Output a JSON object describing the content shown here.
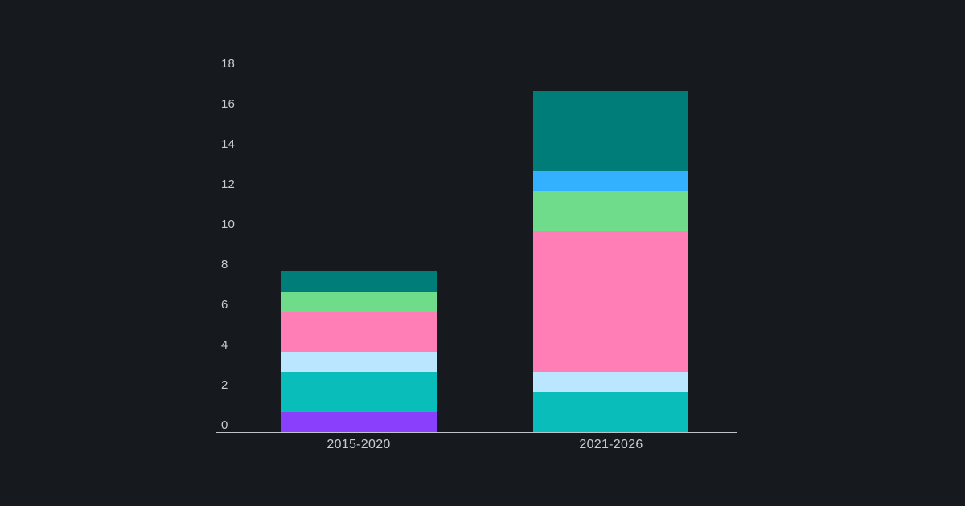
{
  "page": {
    "background": "#16191d"
  },
  "chart_data": {
    "type": "bar",
    "stacked": true,
    "title": "",
    "xlabel": "",
    "ylabel": "",
    "categories": [
      "2015-2020",
      "2021-2026"
    ],
    "series": [
      {
        "name": "purple-segment",
        "color": "#8a3ffc",
        "values": [
          1,
          0
        ]
      },
      {
        "name": "teal-segment",
        "color": "#08bdba",
        "values": [
          2,
          2
        ]
      },
      {
        "name": "light-blue-segment",
        "color": "#bae6ff",
        "values": [
          1,
          1
        ]
      },
      {
        "name": "pink-segment",
        "color": "#ff7eb6",
        "values": [
          2,
          7
        ]
      },
      {
        "name": "green-segment",
        "color": "#6fdc8c",
        "values": [
          1,
          2
        ]
      },
      {
        "name": "blue-segment",
        "color": "#33b1ff",
        "values": [
          0,
          1
        ]
      },
      {
        "name": "dark-teal-segment",
        "color": "#007d79",
        "values": [
          1,
          4
        ]
      }
    ],
    "totals": [
      8,
      17
    ],
    "y_ticks": [
      0,
      2,
      4,
      6,
      8,
      10,
      12,
      14,
      16,
      18
    ],
    "ylim": [
      0,
      18
    ],
    "legend": false,
    "grid": false,
    "colors": {
      "background": "#16191d",
      "axis_line": "#bfc4c9",
      "tick_label_color": "#c9cdd2"
    }
  }
}
